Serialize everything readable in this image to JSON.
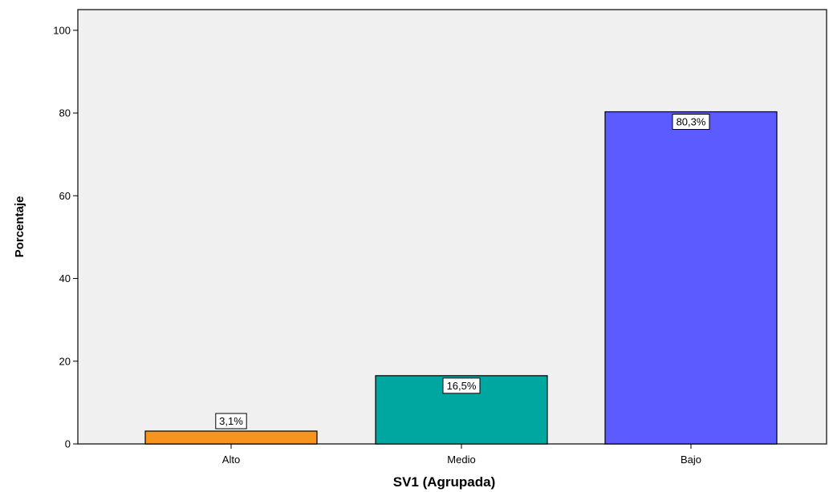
{
  "chart_data": {
    "type": "bar",
    "categories": [
      "Alto",
      "Medio",
      "Bajo"
    ],
    "values": [
      3.1,
      16.5,
      80.3
    ],
    "data_labels": [
      "3,1%",
      "16,5%",
      "80,3%"
    ],
    "colors": [
      "#F7941D",
      "#00A6A0",
      "#5B5BFF"
    ],
    "xlabel": "SV1 (Agrupada)",
    "ylabel": "Porcentaje",
    "ylim": [
      0,
      105
    ],
    "yticks": [
      0,
      20,
      40,
      60,
      80,
      100
    ],
    "ytick_labels": [
      "0",
      "20",
      "40",
      "60",
      "80",
      "100"
    ],
    "plot_background": "#F0F0F0",
    "bar_edge_color": "#000000",
    "grid": false,
    "legend": "none"
  }
}
